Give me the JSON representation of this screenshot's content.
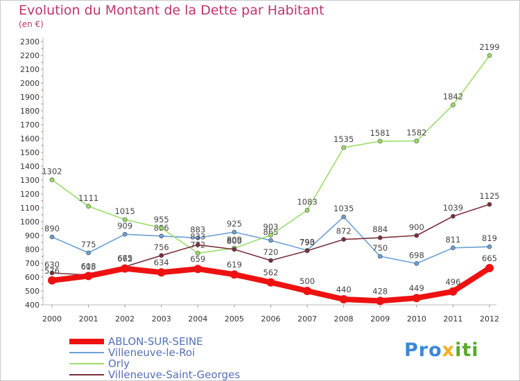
{
  "title": "Evolution du Montant de la Dette par Habitant",
  "subtitle": "(en €)",
  "logo": "Proxiti",
  "chart_data": {
    "type": "line",
    "x": [
      "2000",
      "2001",
      "2002",
      "2003",
      "2004",
      "2005",
      "2006",
      "2007",
      "2008",
      "2009",
      "2010",
      "2011",
      "2012"
    ],
    "ylim": [
      400,
      2300
    ],
    "yticks": [
      400,
      500,
      600,
      700,
      800,
      900,
      1000,
      1100,
      1200,
      1300,
      1400,
      1500,
      1600,
      1700,
      1800,
      1900,
      2000,
      2100,
      2200,
      2300
    ],
    "grid": false,
    "legend_position": "bottom-left",
    "series": [
      {
        "name": "Villeneuve-le-Roi",
        "color": "#6a9fd4",
        "values": [
          890,
          775,
          909,
          896,
          883,
          925,
          865,
          793,
          1035,
          750,
          698,
          811,
          819
        ]
      },
      {
        "name": "Orly",
        "color": "#99dd66",
        "values": [
          1302,
          1111,
          1015,
          955,
          772,
          809,
          903,
          1083,
          1535,
          1581,
          1582,
          1842,
          2199
        ]
      },
      {
        "name": "Villeneuve-Saint-Georges",
        "color": "#7a2e3a",
        "values": [
          630,
          615,
          675,
          756,
          833,
          800,
          720,
          790,
          872,
          884,
          900,
          1039,
          1125
        ]
      },
      {
        "name": "ABLON-SUR-SEINE",
        "color": "#ee1111",
        "values": [
          576,
          608,
          662,
          634,
          659,
          619,
          562,
          500,
          440,
          428,
          449,
          496,
          665
        ]
      }
    ]
  }
}
